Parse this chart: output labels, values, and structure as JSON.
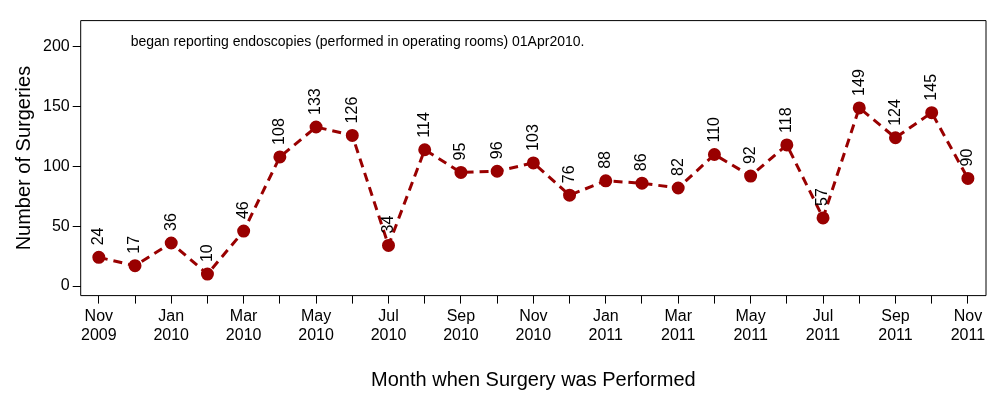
{
  "chart_data": {
    "type": "line",
    "xlabel": "Month when Surgery was Performed",
    "ylabel": "Number of Surgeries",
    "annotations": [
      "began reporting endoscopies (performed in operating rooms) 01Apr2010."
    ],
    "categories": [
      "Nov 2009",
      null,
      "Jan 2010",
      null,
      "Mar 2010",
      null,
      "May 2010",
      null,
      "Jul 2010",
      null,
      "Sep 2010",
      null,
      "Nov 2010",
      null,
      "Jan 2011",
      null,
      "Mar 2011",
      null,
      "May 2011",
      null,
      "Jul 2011",
      null,
      "Sep 2011",
      null,
      "Nov 2011"
    ],
    "series": [
      {
        "color": "#990000",
        "values": [
          24,
          17,
          36,
          10,
          46,
          108,
          133,
          126,
          34,
          114,
          95,
          96,
          103,
          76,
          88,
          86,
          82,
          110,
          92,
          118,
          57,
          149,
          124,
          145,
          90
        ]
      }
    ],
    "ylim": [
      -8,
      222
    ],
    "yticks": [
      0,
      50,
      100,
      150,
      200
    ],
    "grid": false,
    "legend": false,
    "marker": "circle",
    "line_style": "dashed",
    "data_labels": true
  }
}
